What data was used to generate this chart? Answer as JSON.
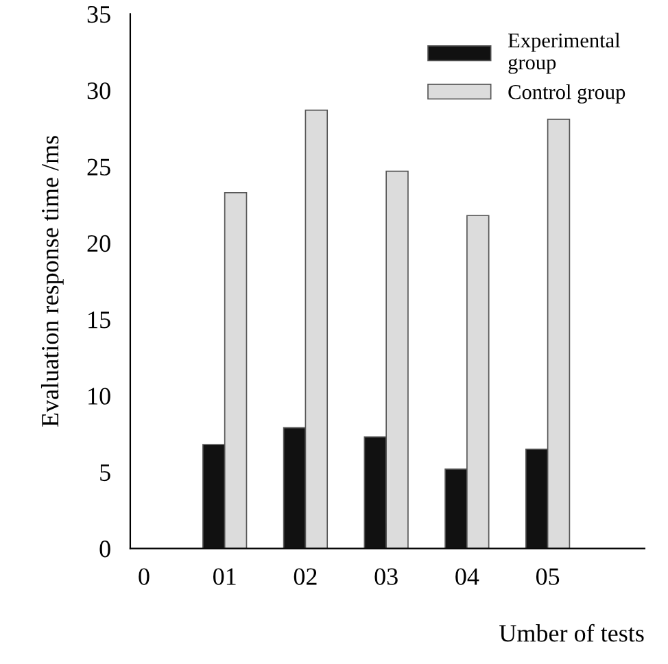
{
  "chart_data": {
    "type": "bar",
    "xlabel": "Umber of tests",
    "ylabel": "Evaluation response time /ms",
    "categories": [
      "0",
      "01",
      "02",
      "03",
      "04",
      "05"
    ],
    "series": [
      {
        "name": "Experimental\ngroup",
        "color": "#111111",
        "values": [
          null,
          6.8,
          7.9,
          7.3,
          5.2,
          6.5
        ]
      },
      {
        "name": "Control group",
        "color": "#dcdcdc",
        "values": [
          null,
          23.3,
          28.7,
          24.7,
          21.8,
          28.1
        ]
      }
    ],
    "ylim": [
      0,
      35
    ],
    "yticks": [
      0,
      5,
      10,
      15,
      20,
      25,
      30,
      35
    ],
    "grid": false,
    "legend": "top right"
  }
}
